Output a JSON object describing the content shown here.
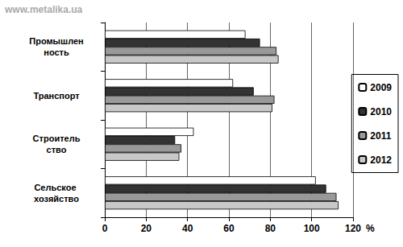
{
  "chart_data": {
    "type": "bar",
    "orientation": "horizontal",
    "annotations": [
      "www.metalika.ua"
    ],
    "x_label": "%",
    "categories": [
      "Промышленность",
      "Транспорт",
      "Строительство",
      "Сельское хозяйство"
    ],
    "series": [
      {
        "name": "2009",
        "color": "#ffffff",
        "values": [
          68,
          62,
          43,
          102
        ]
      },
      {
        "name": "2010",
        "color": "#333333",
        "values": [
          75,
          72,
          34,
          107
        ]
      },
      {
        "name": "2011",
        "color": "#999999",
        "values": [
          83,
          82,
          37,
          112
        ]
      },
      {
        "name": "2012",
        "color": "#c8c8c8",
        "values": [
          84,
          81,
          36,
          113
        ]
      }
    ],
    "xlim": [
      0,
      120
    ],
    "xticks": [
      0,
      20,
      40,
      60,
      80,
      100,
      120
    ],
    "grid": true,
    "legend": "right"
  }
}
